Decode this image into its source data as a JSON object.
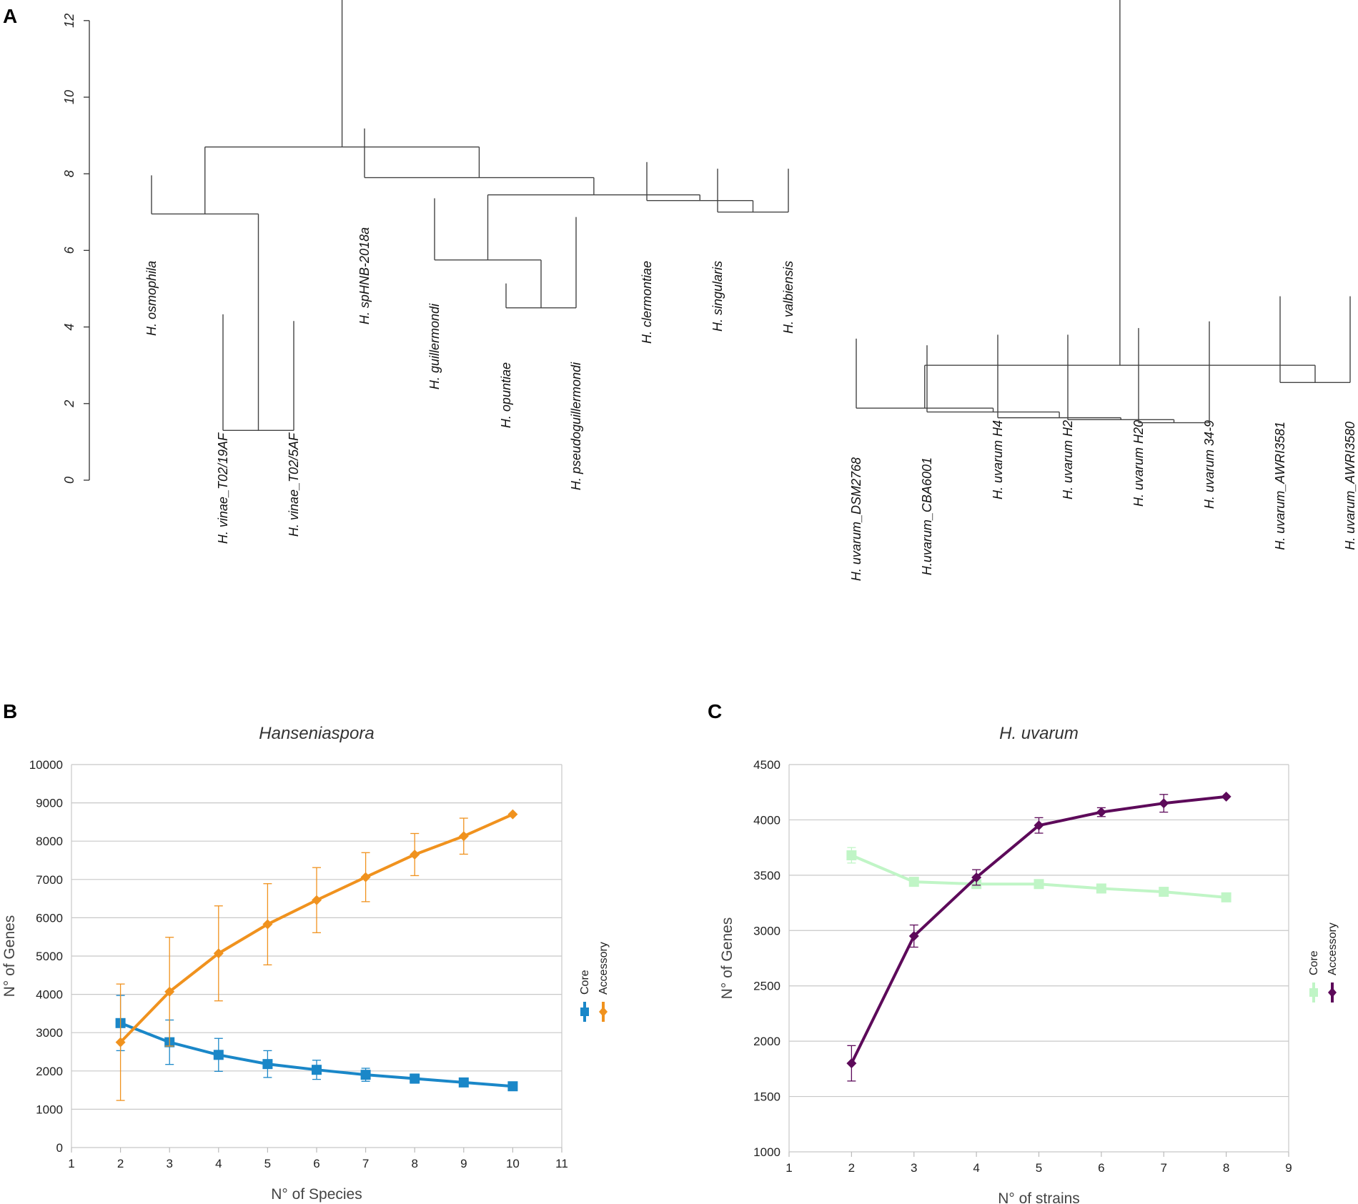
{
  "panels": {
    "a": "A",
    "b": "B",
    "c": "C"
  },
  "chart_data": [
    {
      "type": "dendrogram",
      "panel": "A",
      "y_ticks": [
        0,
        2,
        4,
        6,
        8,
        10,
        12
      ],
      "ylim": [
        0,
        12.5
      ],
      "leaves": [
        "H. osmophila",
        "H. vinae_T02/19AF",
        "H. vinae_T02/5AF",
        "H. spHNB-2018a",
        "H. guillermondi",
        "H. opuntiae",
        "H. pseudoguillermondi",
        "H. clermontiae",
        "H. singularis",
        "H. valbiensis",
        "H. uvarum_DSM2768",
        "H.uvarum_CBA6001",
        "H. uvarum H4",
        "H. uvarum H2",
        "H. uvarum H20",
        "H. uvarum 34-9",
        "H. uvarum_AWRI3581",
        "H. uvarum_AWRI3580"
      ],
      "merges": [
        {
          "id": "v",
          "left": 1,
          "right": 2,
          "height": 1.3
        },
        {
          "id": "osv",
          "left": 0,
          "right": "v",
          "height": 6.95
        },
        {
          "id": "op",
          "left": 5,
          "right": 6,
          "height": 4.5
        },
        {
          "id": "gop",
          "left": 4,
          "right": "op",
          "height": 5.75
        },
        {
          "id": "sv",
          "left": 8,
          "right": 9,
          "height": 7.0
        },
        {
          "id": "csv",
          "left": 7,
          "right": "sv",
          "height": 7.3
        },
        {
          "id": "g2",
          "left": "gop",
          "right": "csv",
          "height": 7.45
        },
        {
          "id": "g3",
          "left": 3,
          "right": "g2",
          "height": 7.9
        },
        {
          "id": "hA",
          "left": "osv",
          "right": "g3",
          "height": 8.7
        },
        {
          "id": "u1",
          "left": 14,
          "right": 15,
          "height": 1.5
        },
        {
          "id": "u2",
          "left": 13,
          "right": "u1",
          "height": 1.58
        },
        {
          "id": "u3",
          "left": 12,
          "right": "u2",
          "height": 1.63
        },
        {
          "id": "u4",
          "left": 11,
          "right": "u3",
          "height": 1.78
        },
        {
          "id": "u5",
          "left": 10,
          "right": "u4",
          "height": 1.88
        },
        {
          "id": "aw",
          "left": 16,
          "right": 17,
          "height": 2.55
        },
        {
          "id": "hU",
          "left": "u5",
          "right": "aw",
          "height": 3.0
        },
        {
          "id": "root",
          "left": "hA",
          "right": "hU",
          "height": 12.6
        }
      ]
    },
    {
      "type": "line",
      "panel": "B",
      "title": "Hanseniaspora",
      "xlabel": "N° of Species",
      "ylabel": "N° of Genes",
      "xlim": [
        1,
        11
      ],
      "ylim": [
        0,
        10000
      ],
      "x_ticks": [
        1,
        2,
        3,
        4,
        5,
        6,
        7,
        8,
        9,
        10,
        11
      ],
      "y_ticks": [
        0,
        1000,
        2000,
        3000,
        4000,
        5000,
        6000,
        7000,
        8000,
        9000,
        10000
      ],
      "legend": "right",
      "series": [
        {
          "name": "Core",
          "color": "#1a87c8",
          "marker": "square",
          "x": [
            2,
            3,
            4,
            5,
            6,
            7,
            8,
            9,
            10
          ],
          "values": [
            3250,
            2750,
            2420,
            2180,
            2030,
            1900,
            1800,
            1700,
            1600
          ],
          "err": [
            720,
            580,
            430,
            350,
            250,
            170,
            120,
            60,
            40
          ]
        },
        {
          "name": "Accessory",
          "color": "#f0921e",
          "marker": "diamond",
          "x": [
            2,
            3,
            4,
            5,
            6,
            7,
            8,
            9,
            10
          ],
          "values": [
            2750,
            4070,
            5070,
            5830,
            6460,
            7060,
            7650,
            8130,
            8700
          ],
          "err": [
            1520,
            1420,
            1240,
            1060,
            850,
            640,
            550,
            470,
            0
          ]
        }
      ]
    },
    {
      "type": "line",
      "panel": "C",
      "title": "H. uvarum",
      "xlabel": "N° of strains",
      "ylabel": "N° of Genes",
      "xlim": [
        1,
        9
      ],
      "ylim": [
        1000,
        4500
      ],
      "x_ticks": [
        1,
        2,
        3,
        4,
        5,
        6,
        7,
        8,
        9
      ],
      "y_ticks": [
        1000,
        1500,
        2000,
        2500,
        3000,
        3500,
        4000,
        4500
      ],
      "legend": "right",
      "series": [
        {
          "name": "Core",
          "color": "#c0f5c6",
          "marker": "square",
          "x": [
            2,
            3,
            4,
            5,
            6,
            7,
            8
          ],
          "values": [
            3680,
            3440,
            3420,
            3420,
            3380,
            3350,
            3300
          ],
          "err": [
            70,
            40,
            30,
            30,
            25,
            20,
            20
          ]
        },
        {
          "name": "Accessory",
          "color": "#5d0a5a",
          "marker": "diamond",
          "x": [
            2,
            3,
            4,
            5,
            6,
            7,
            8
          ],
          "values": [
            1800,
            2950,
            3480,
            3950,
            4070,
            4150,
            4210
          ],
          "err": [
            160,
            100,
            70,
            70,
            40,
            80,
            0
          ]
        }
      ]
    }
  ]
}
